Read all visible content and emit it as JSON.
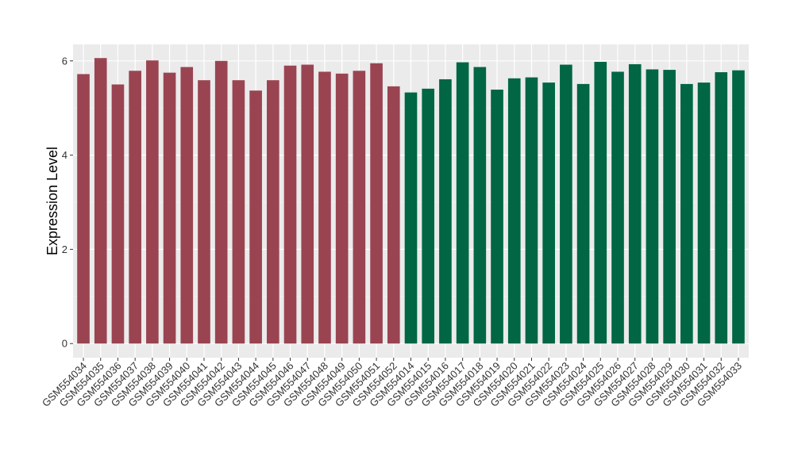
{
  "chart_data": {
    "type": "bar",
    "title": "",
    "xlabel": "",
    "ylabel": "Expression Level",
    "ylim": [
      -0.3,
      6.35
    ],
    "yticks": [
      0,
      2,
      4,
      6
    ],
    "grid": true,
    "legend": "none",
    "series": [
      {
        "color": "#9a4452",
        "categories": [
          "GSM554034",
          "GSM554035",
          "GSM554036",
          "GSM554037",
          "GSM554038",
          "GSM554039",
          "GSM554040",
          "GSM554041",
          "GSM554042",
          "GSM554043",
          "GSM554044",
          "GSM554045",
          "GSM554046",
          "GSM554047",
          "GSM554048",
          "GSM554049",
          "GSM554050",
          "GSM554051",
          "GSM554052"
        ],
        "values": [
          5.72,
          6.06,
          5.5,
          5.79,
          6.01,
          5.75,
          5.87,
          5.59,
          6.0,
          5.59,
          5.37,
          5.59,
          5.9,
          5.92,
          5.77,
          5.73,
          5.79,
          5.95,
          5.46
        ]
      },
      {
        "color": "#006644",
        "categories": [
          "GSM554014",
          "GSM554015",
          "GSM554016",
          "GSM554017",
          "GSM554018",
          "GSM554019",
          "GSM554020",
          "GSM554021",
          "GSM554022",
          "GSM554023",
          "GSM554024",
          "GSM554025",
          "GSM554026",
          "GSM554027",
          "GSM554028",
          "GSM554029",
          "GSM554030",
          "GSM554031",
          "GSM554032",
          "GSM554033"
        ],
        "values": [
          5.33,
          5.41,
          5.61,
          5.97,
          5.87,
          5.39,
          5.63,
          5.65,
          5.54,
          5.92,
          5.51,
          5.98,
          5.77,
          5.93,
          5.82,
          5.81,
          5.51,
          5.54,
          5.76,
          5.8
        ]
      }
    ]
  }
}
